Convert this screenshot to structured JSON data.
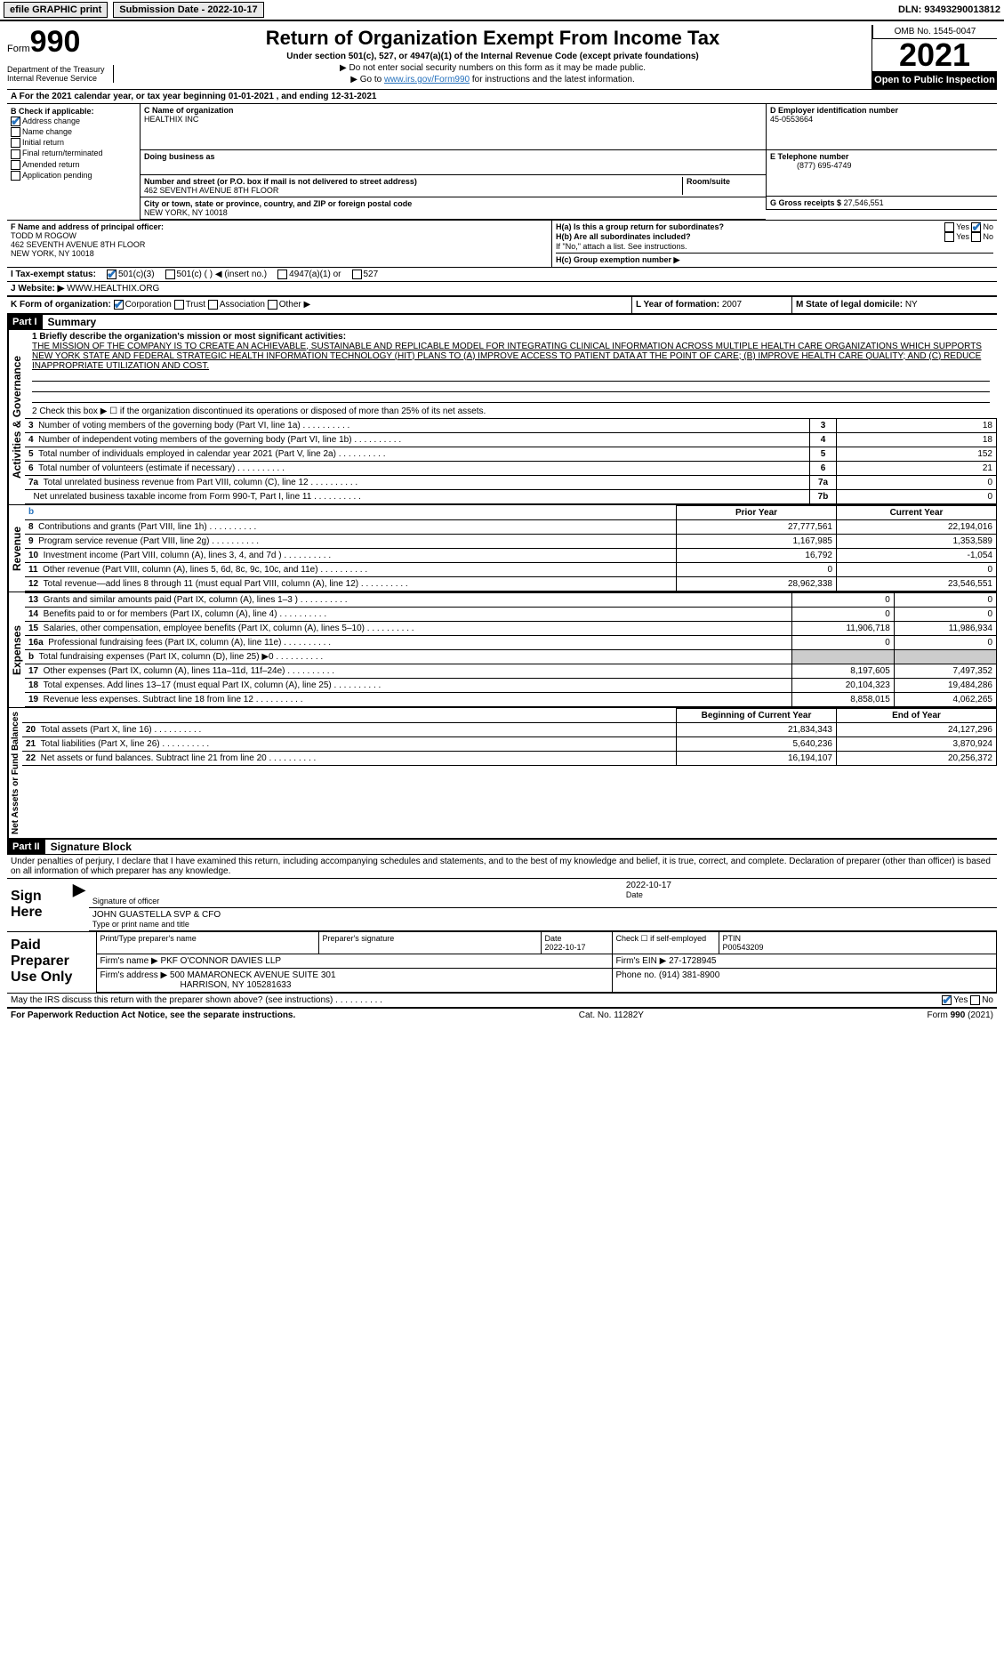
{
  "topbar": {
    "efile_label": "efile GRAPHIC print",
    "submission_label": "Submission Date - 2022-10-17",
    "dln": "DLN: 93493290013812"
  },
  "header": {
    "form_word": "Form",
    "form_number": "990",
    "dept_line1": "Department of the Treasury",
    "dept_line2": "Internal Revenue Service",
    "main_title": "Return of Organization Exempt From Income Tax",
    "subtitle1": "Under section 501(c), 527, or 4947(a)(1) of the Internal Revenue Code (except private foundations)",
    "subtitle2": "▶ Do not enter social security numbers on this form as it may be made public.",
    "subtitle3_prefix": "▶ Go to ",
    "subtitle3_link": "www.irs.gov/Form990",
    "subtitle3_suffix": " for instructions and the latest information.",
    "omb": "OMB No. 1545-0047",
    "tax_year": "2021",
    "open_public": "Open to Public Inspection"
  },
  "lineA": "A For the 2021 calendar year, or tax year beginning 01-01-2021    , and ending 12-31-2021",
  "boxB": {
    "title": "B Check if applicable:",
    "address_change": "Address change",
    "name_change": "Name change",
    "initial_return": "Initial return",
    "final_return": "Final return/terminated",
    "amended": "Amended return",
    "app_pending": "Application pending"
  },
  "boxC": {
    "name_label": "C Name of organization",
    "name": "HEALTHIX INC",
    "dba_label": "Doing business as",
    "street_label": "Number and street (or P.O. box if mail is not delivered to street address)",
    "room_label": "Room/suite",
    "street": "462 SEVENTH AVENUE 8TH FLOOR",
    "city_label": "City or town, state or province, country, and ZIP or foreign postal code",
    "city": "NEW YORK, NY  10018"
  },
  "boxD": {
    "label": "D Employer identification number",
    "value": "45-0553664"
  },
  "boxE": {
    "label": "E Telephone number",
    "value": "(877) 695-4749"
  },
  "boxG": {
    "label": "G Gross receipts $",
    "value": "27,546,551"
  },
  "boxF": {
    "label": "F Name and address of principal officer:",
    "name": "TODD M ROGOW",
    "street": "462 SEVENTH AVENUE 8TH FLOOR",
    "city": "NEW YORK, NY  10018"
  },
  "boxH": {
    "a_label": "H(a)  Is this a group return for subordinates?",
    "yes": "Yes",
    "no": "No",
    "b_label": "H(b)  Are all subordinates included?",
    "note": "If \"No,\" attach a list. See instructions.",
    "c_label": "H(c)  Group exemption number ▶"
  },
  "lineI": {
    "label": "I    Tax-exempt status:",
    "c3": "501(c)(3)",
    "c": "501(c) (  ) ◀ (insert no.)",
    "a1": "4947(a)(1) or",
    "527": "527"
  },
  "lineJ": {
    "prefix": "J   Website: ▶ ",
    "value": "WWW.HEALTHIX.ORG"
  },
  "lineK": {
    "label": "K Form of organization:",
    "corp": "Corporation",
    "trust": "Trust",
    "assoc": "Association",
    "other": "Other ▶"
  },
  "lineL": {
    "label": "L Year of formation:",
    "value": "2007"
  },
  "lineM": {
    "label": "M State of legal domicile:",
    "value": "NY"
  },
  "part1": {
    "bar": "Part I",
    "title": "Summary",
    "line1_label": "1  Briefly describe the organization's mission or most significant activities:",
    "mission": "THE MISSION OF THE COMPANY IS TO CREATE AN ACHIEVABLE, SUSTAINABLE AND REPLICABLE MODEL FOR INTEGRATING CLINICAL INFORMATION ACROSS MULTIPLE HEALTH CARE ORGANIZATIONS WHICH SUPPORTS NEW YORK STATE AND FEDERAL STRATEGIC HEALTH INFORMATION TECHNOLOGY (HIT) PLANS TO (A) IMPROVE ACCESS TO PATIENT DATA AT THE POINT OF CARE; (B) IMPROVE HEALTH CARE QUALITY; AND (C) REDUCE INAPPROPRIATE UTILIZATION AND COST.",
    "line2": "2    Check this box ▶ ☐  if the organization discontinued its operations or disposed of more than 25% of its net assets.",
    "sidelabel_ag": "Activities & Governance",
    "sidelabel_rev": "Revenue",
    "sidelabel_exp": "Expenses",
    "sidelabel_na": "Net Assets or Fund Balances",
    "rows_ag": [
      {
        "n": "3",
        "desc": "Number of voting members of the governing body (Part VI, line 1a)",
        "box": "3",
        "v": "18"
      },
      {
        "n": "4",
        "desc": "Number of independent voting members of the governing body (Part VI, line 1b)",
        "box": "4",
        "v": "18"
      },
      {
        "n": "5",
        "desc": "Total number of individuals employed in calendar year 2021 (Part V, line 2a)",
        "box": "5",
        "v": "152"
      },
      {
        "n": "6",
        "desc": "Total number of volunteers (estimate if necessary)",
        "box": "6",
        "v": "21"
      },
      {
        "n": "7a",
        "desc": "Total unrelated business revenue from Part VIII, column (C), line 12",
        "box": "7a",
        "v": "0"
      },
      {
        "n": "",
        "desc": "Net unrelated business taxable income from Form 990-T, Part I, line 11",
        "box": "7b",
        "v": "0"
      }
    ],
    "hdr_prior": "Prior Year",
    "hdr_curr": "Current Year",
    "rows_rev": [
      {
        "n": "8",
        "desc": "Contributions and grants (Part VIII, line 1h)",
        "p": "27,777,561",
        "c": "22,194,016"
      },
      {
        "n": "9",
        "desc": "Program service revenue (Part VIII, line 2g)",
        "p": "1,167,985",
        "c": "1,353,589"
      },
      {
        "n": "10",
        "desc": "Investment income (Part VIII, column (A), lines 3, 4, and 7d )",
        "p": "16,792",
        "c": "-1,054"
      },
      {
        "n": "11",
        "desc": "Other revenue (Part VIII, column (A), lines 5, 6d, 8c, 9c, 10c, and 11e)",
        "p": "0",
        "c": "0"
      },
      {
        "n": "12",
        "desc": "Total revenue—add lines 8 through 11 (must equal Part VIII, column (A), line 12)",
        "p": "28,962,338",
        "c": "23,546,551"
      }
    ],
    "rows_exp": [
      {
        "n": "13",
        "desc": "Grants and similar amounts paid (Part IX, column (A), lines 1–3 )",
        "p": "0",
        "c": "0"
      },
      {
        "n": "14",
        "desc": "Benefits paid to or for members (Part IX, column (A), line 4)",
        "p": "0",
        "c": "0"
      },
      {
        "n": "15",
        "desc": "Salaries, other compensation, employee benefits (Part IX, column (A), lines 5–10)",
        "p": "11,906,718",
        "c": "11,986,934"
      },
      {
        "n": "16a",
        "desc": "Professional fundraising fees (Part IX, column (A), line 11e)",
        "p": "0",
        "c": "0"
      },
      {
        "n": "b",
        "desc": "Total fundraising expenses (Part IX, column (D), line 25) ▶0",
        "p": "GRAY",
        "c": "GRAY"
      },
      {
        "n": "17",
        "desc": "Other expenses (Part IX, column (A), lines 11a–11d, 11f–24e)",
        "p": "8,197,605",
        "c": "7,497,352"
      },
      {
        "n": "18",
        "desc": "Total expenses. Add lines 13–17 (must equal Part IX, column (A), line 25)",
        "p": "20,104,323",
        "c": "19,484,286"
      },
      {
        "n": "19",
        "desc": "Revenue less expenses. Subtract line 18 from line 12",
        "p": "8,858,015",
        "c": "4,062,265"
      }
    ],
    "hdr_beg": "Beginning of Current Year",
    "hdr_end": "End of Year",
    "rows_na": [
      {
        "n": "20",
        "desc": "Total assets (Part X, line 16)",
        "p": "21,834,343",
        "c": "24,127,296"
      },
      {
        "n": "21",
        "desc": "Total liabilities (Part X, line 26)",
        "p": "5,640,236",
        "c": "3,870,924"
      },
      {
        "n": "22",
        "desc": "Net assets or fund balances. Subtract line 21 from line 20",
        "p": "16,194,107",
        "c": "20,256,372"
      }
    ]
  },
  "part2": {
    "bar": "Part II",
    "title": "Signature Block",
    "perjury": "Under penalties of perjury, I declare that I have examined this return, including accompanying schedules and statements, and to the best of my knowledge and belief, it is true, correct, and complete. Declaration of preparer (other than officer) is based on all information of which preparer has any knowledge.",
    "sign_here": "Sign Here",
    "sig_officer": "Signature of officer",
    "sig_date": "2022-10-17",
    "date_lbl": "Date",
    "officer_name": "JOHN GUASTELLA  SVP & CFO",
    "officer_type": "Type or print name and title",
    "paid": "Paid Preparer Use Only",
    "col_prep_name": "Print/Type preparer's name",
    "col_prep_sig": "Preparer's signature",
    "col_date": "Date",
    "date_val": "2022-10-17",
    "col_self": "Check ☐ if self-employed",
    "col_ptin": "PTIN",
    "ptin": "P00543209",
    "firm_name_lbl": "Firm's name      ▶",
    "firm_name": "PKF O'CONNOR DAVIES LLP",
    "firm_ein_lbl": "Firm's EIN ▶",
    "firm_ein": "27-1728945",
    "firm_addr_lbl": "Firm's address ▶",
    "firm_addr1": "500 MAMARONECK AVENUE SUITE 301",
    "firm_addr2": "HARRISON, NY  105281633",
    "phone_lbl": "Phone no.",
    "phone": "(914) 381-8900",
    "may_irs": "May the IRS discuss this return with the preparer shown above? (see instructions)",
    "yes": "Yes",
    "no": "No"
  },
  "footer": {
    "left": "For Paperwork Reduction Act Notice, see the separate instructions.",
    "mid": "Cat. No. 11282Y",
    "right": "Form 990 (2021)"
  }
}
